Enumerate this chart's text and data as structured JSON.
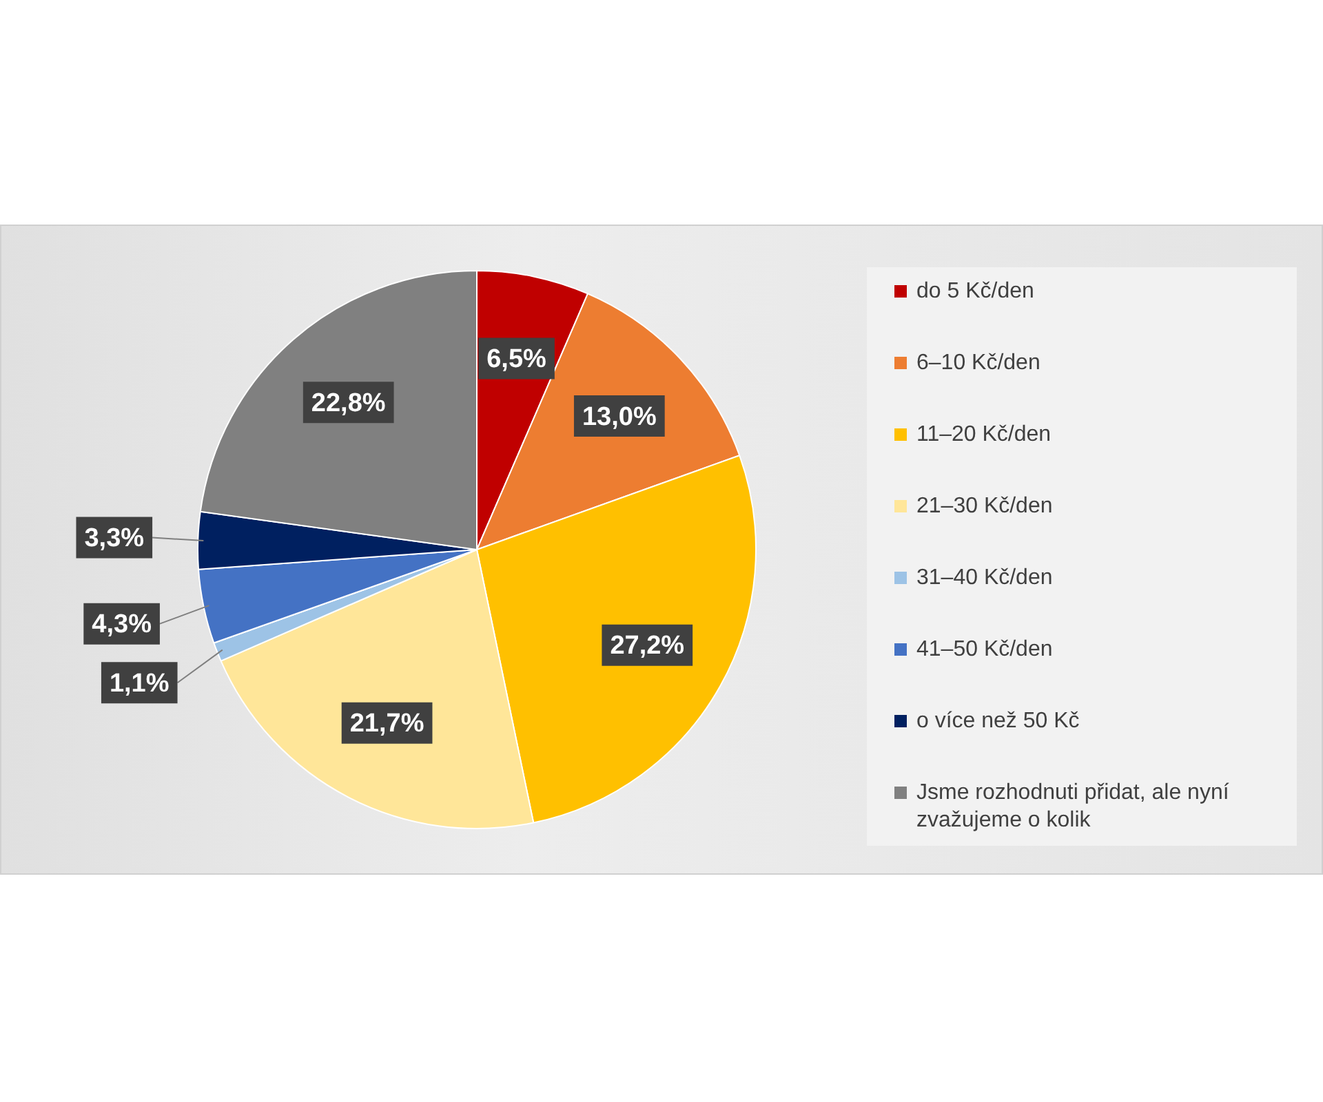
{
  "chart_data": {
    "type": "pie",
    "categories": [
      "do 5 Kč/den",
      "6–10 Kč/den",
      "11–20 Kč/den",
      "21–30 Kč/den",
      "31–40 Kč/den",
      "41–50 Kč/den",
      "o více než 50 Kč",
      "Jsme rozhodnuti přidat, ale nyní zvažujeme o kolik"
    ],
    "values": [
      6.5,
      13.0,
      27.2,
      21.7,
      1.1,
      4.3,
      3.3,
      22.8
    ],
    "colors": [
      "#c00000",
      "#ed7d31",
      "#ffc000",
      "#ffe699",
      "#9dc3e6",
      "#4472c4",
      "#002060",
      "#808080"
    ],
    "value_labels": [
      "6,5%",
      "13,0%",
      "27,2%",
      "21,7%",
      "1,1%",
      "4,3%",
      "3,3%",
      "22,8%"
    ],
    "legend": "right"
  }
}
